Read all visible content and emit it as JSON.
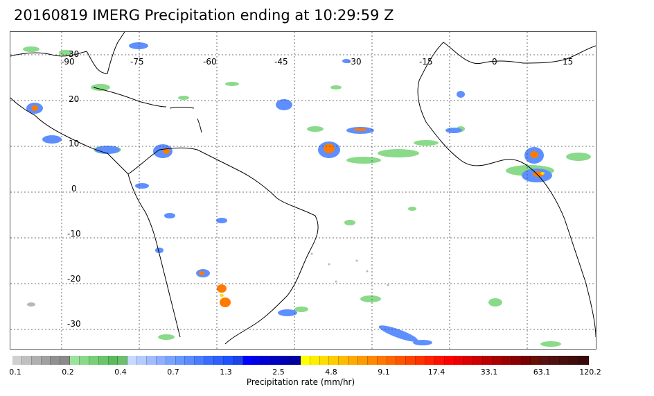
{
  "title": "20160819 IMERG Precipitation ending at 10:29:59 Z",
  "map": {
    "lon_range": [
      -93,
      20
    ],
    "lat_range": [
      -35,
      34
    ],
    "lon_labels": [
      "-90",
      "-75",
      "-60",
      "-45",
      "-30",
      "-15",
      "0",
      "15"
    ],
    "lat_labels": [
      "30",
      "20",
      "10",
      "0",
      "-10",
      "-20",
      "-30"
    ],
    "grid_style": "dotted",
    "coastline_color": "#000000"
  },
  "colorbar": {
    "title": "Precipitation rate (mm/hr)",
    "labels": [
      "0.1",
      "0.2",
      "0.4",
      "0.7",
      "1.3",
      "2.5",
      "4.8",
      "9.1",
      "17.4",
      "33.1",
      "63.1",
      "120.2"
    ],
    "colors": [
      "#d0d0d0",
      "#c0c0c0",
      "#b0b0b0",
      "#a0a0a0",
      "#909090",
      "#8a8a8a",
      "#9be39b",
      "#8ad98a",
      "#78cf78",
      "#6ac46a",
      "#5bbb5b",
      "#6cbf6c",
      "#c8d8ff",
      "#b4cbff",
      "#a0bcff",
      "#8cb0ff",
      "#78a4ff",
      "#6898ff",
      "#5a8bff",
      "#4a7cff",
      "#3a6dff",
      "#2c60ff",
      "#1f52ff",
      "#1a44e8",
      "#0000ff",
      "#0000e6",
      "#0000d0",
      "#0000c0",
      "#0000b0",
      "#0000a0",
      "#ffff00",
      "#ffee00",
      "#ffdd00",
      "#ffcc00",
      "#ffbb00",
      "#ffaa00",
      "#ff9900",
      "#ff8800",
      "#ff7700",
      "#ff6600",
      "#ff5500",
      "#ff4400",
      "#ff3300",
      "#ff2200",
      "#ff1100",
      "#ff0000",
      "#ee0000",
      "#dd0000",
      "#cc0000",
      "#bb0000",
      "#aa0000",
      "#990000",
      "#880000",
      "#770000",
      "#661100",
      "#5a1111",
      "#501010",
      "#480e0e",
      "#400c0c",
      "#3a0a0a"
    ]
  }
}
